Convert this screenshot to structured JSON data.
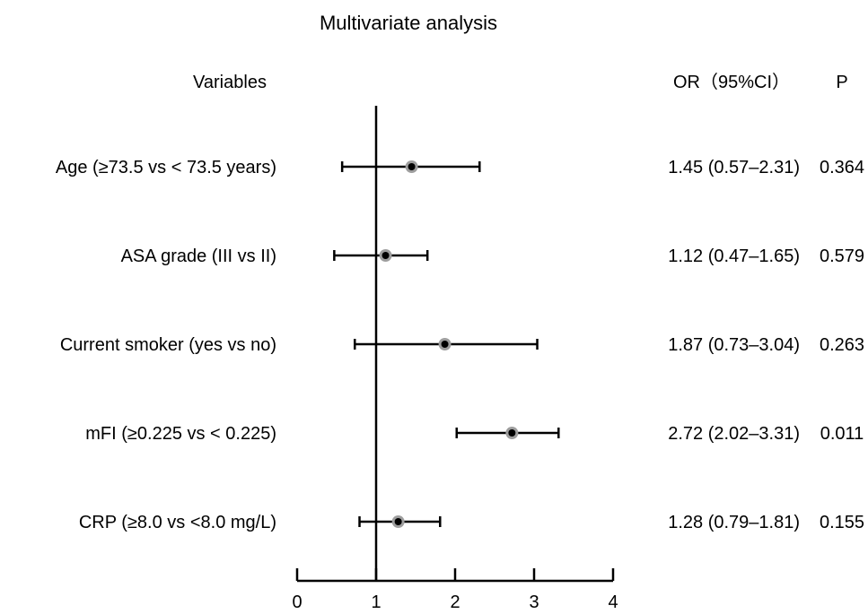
{
  "chart_data": {
    "type": "forest",
    "title": "Multivariate analysis",
    "headers": {
      "variables": "Variables",
      "or": "OR（95%CI）",
      "p": "P"
    },
    "reference_line": 1,
    "xlim": [
      0,
      4
    ],
    "x_ticks": [
      0,
      1,
      2,
      3,
      4
    ],
    "rows": [
      {
        "variable": "Age (≥73.5 vs < 73.5 years)",
        "or": 1.45,
        "lower": 0.57,
        "upper": 2.31,
        "or_text": "1.45 (0.57–2.31)",
        "p": "0.364"
      },
      {
        "variable": "ASA grade (III vs II)",
        "or": 1.12,
        "lower": 0.47,
        "upper": 1.65,
        "or_text": "1.12 (0.47–1.65)",
        "p": "0.579"
      },
      {
        "variable": "Current smoker (yes vs no)",
        "or": 1.87,
        "lower": 0.73,
        "upper": 3.04,
        "or_text": "1.87 (0.73–3.04)",
        "p": "0.263"
      },
      {
        "variable": "mFI (≥0.225 vs < 0.225)",
        "or": 2.72,
        "lower": 2.02,
        "upper": 3.31,
        "or_text": "2.72 (2.02–3.31)",
        "p": "0.011"
      },
      {
        "variable": "CRP (≥8.0 vs <8.0 mg/L)",
        "or": 1.28,
        "lower": 0.79,
        "upper": 1.81,
        "or_text": "1.28 (0.79–1.81)",
        "p": "0.155"
      }
    ],
    "colors": {
      "line": "#000000",
      "marker_outer": "#9e9e9e",
      "marker_inner": "#000000"
    }
  }
}
